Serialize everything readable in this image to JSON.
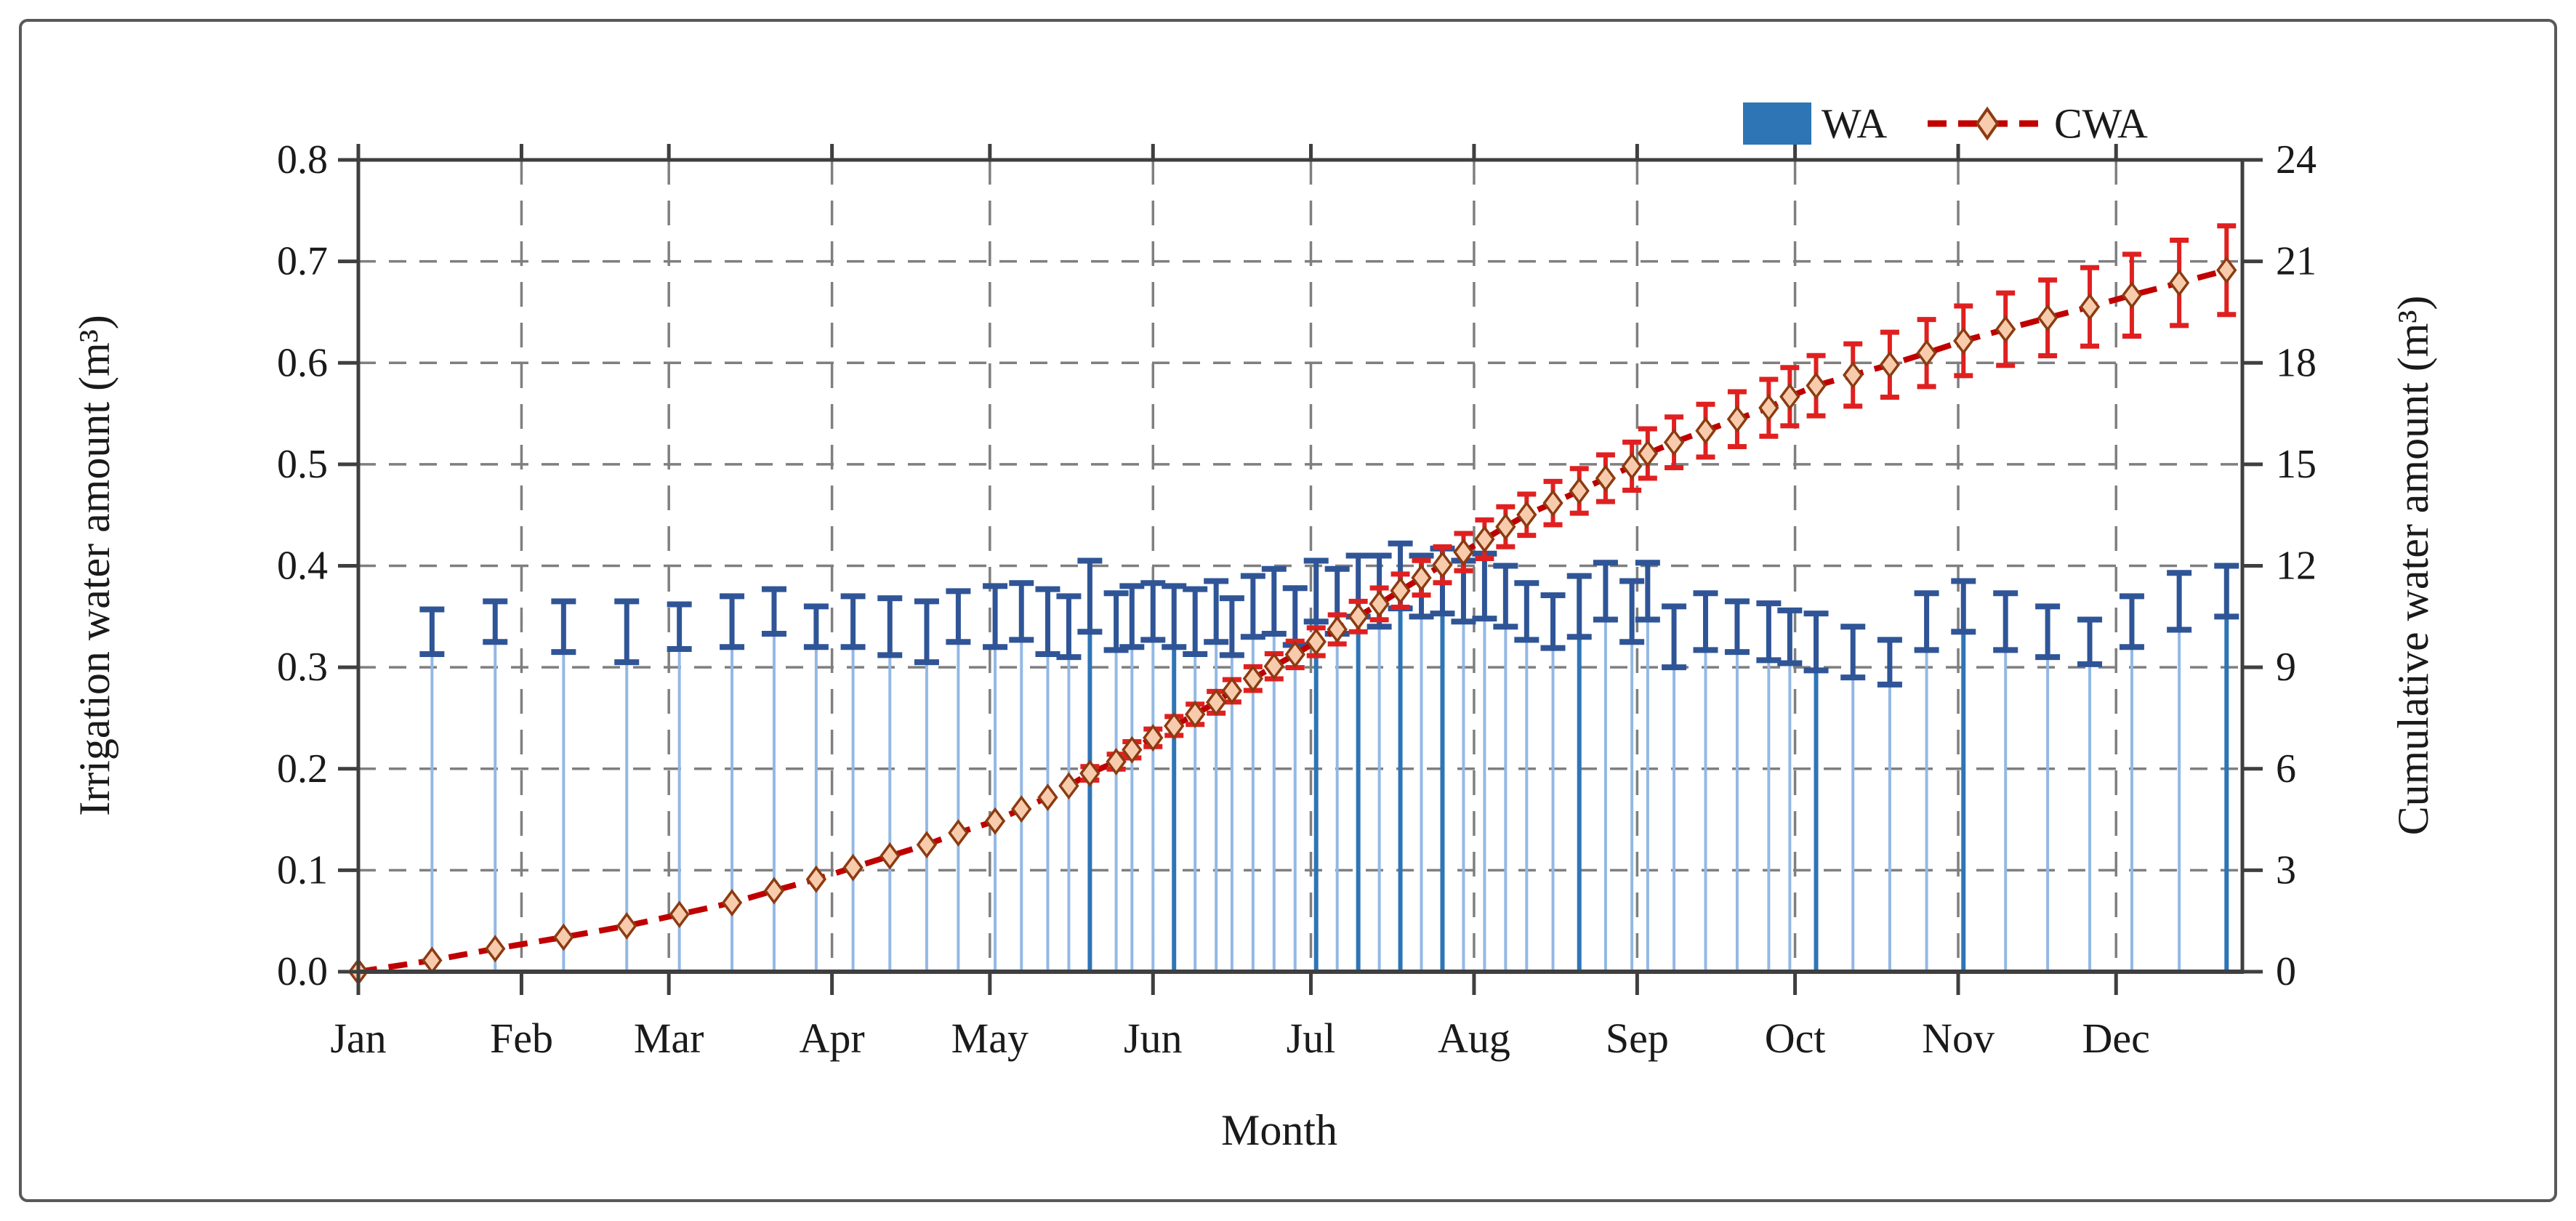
{
  "figure": {
    "background": "#ffffff",
    "border_color": "#595959"
  },
  "legend": {
    "wa_label": "WA",
    "cwa_label": "CWA",
    "wa_swatch_color": "#2E75B6",
    "cwa_line_color": "#C00000"
  },
  "chart_data": {
    "type": "bar",
    "title": "",
    "xlabel": "Month",
    "ylabel_left": "Irrigation water amount (m³)",
    "ylabel_right": "Cumulative water amount (m³)",
    "x_axis": {
      "month_labels": [
        "Jan",
        "Feb",
        "Mar",
        "Apr",
        "May",
        "Jun",
        "Jul",
        "Aug",
        "Sep",
        "Oct",
        "Nov",
        "Dec"
      ],
      "month_start_days": [
        0,
        31,
        59,
        90,
        120,
        151,
        181,
        212,
        243,
        273,
        304,
        334
      ],
      "domain_days": [
        0,
        358
      ]
    },
    "y_left": {
      "min": 0,
      "max": 0.8,
      "tick_labels": [
        "0.0",
        "0.1",
        "0.2",
        "0.3",
        "0.4",
        "0.5",
        "0.6",
        "0.7",
        "0.8"
      ],
      "tick_values": [
        0,
        0.1,
        0.2,
        0.3,
        0.4,
        0.5,
        0.6,
        0.7,
        0.8
      ],
      "grid_values": [
        0.1,
        0.2,
        0.3,
        0.4,
        0.5,
        0.6,
        0.7
      ]
    },
    "y_right": {
      "min": 0,
      "max": 24,
      "tick_labels": [
        "0",
        "3",
        "6",
        "9",
        "12",
        "15",
        "18",
        "21",
        "24"
      ],
      "tick_values": [
        0,
        3,
        6,
        9,
        12,
        15,
        18,
        21,
        24
      ]
    },
    "grid": {
      "v_month_days": [
        31,
        59,
        90,
        120,
        151,
        181,
        212,
        243,
        273,
        304,
        334
      ],
      "color": "#7f7f7f"
    },
    "series": [
      {
        "name": "WA",
        "type": "bar",
        "axis": "left",
        "bar_color": "#93B8E4",
        "bar_color_emphasis": "#2E75B6",
        "error_color": "#2F5597",
        "days": [
          14,
          26,
          39,
          51,
          61,
          71,
          79,
          87,
          94,
          101,
          108,
          114,
          121,
          126,
          131,
          135,
          139,
          144,
          147,
          151,
          155,
          159,
          163,
          166,
          170,
          174,
          178,
          182,
          186,
          190,
          194,
          198,
          202,
          206,
          210,
          214,
          218,
          222,
          227,
          232,
          237,
          242,
          245,
          250,
          256,
          262,
          268,
          272,
          277,
          284,
          291,
          298,
          305,
          313,
          321,
          329,
          337,
          346,
          355
        ],
        "values": [
          0.335,
          0.345,
          0.34,
          0.335,
          0.34,
          0.345,
          0.355,
          0.34,
          0.345,
          0.34,
          0.335,
          0.35,
          0.35,
          0.355,
          0.345,
          0.34,
          0.37,
          0.345,
          0.35,
          0.355,
          0.35,
          0.345,
          0.355,
          0.34,
          0.36,
          0.365,
          0.35,
          0.375,
          0.365,
          0.38,
          0.375,
          0.39,
          0.38,
          0.385,
          0.375,
          0.38,
          0.37,
          0.355,
          0.345,
          0.36,
          0.375,
          0.355,
          0.375,
          0.33,
          0.345,
          0.34,
          0.335,
          0.33,
          0.325,
          0.315,
          0.305,
          0.345,
          0.36,
          0.345,
          0.335,
          0.325,
          0.345,
          0.365,
          0.375
        ],
        "errors": [
          0.022,
          0.02,
          0.025,
          0.03,
          0.022,
          0.025,
          0.022,
          0.02,
          0.025,
          0.028,
          0.03,
          0.025,
          0.03,
          0.028,
          0.032,
          0.03,
          0.035,
          0.028,
          0.03,
          0.028,
          0.03,
          0.032,
          0.03,
          0.028,
          0.03,
          0.032,
          0.028,
          0.03,
          0.032,
          0.03,
          0.035,
          0.032,
          0.03,
          0.032,
          0.03,
          0.032,
          0.03,
          0.028,
          0.026,
          0.03,
          0.028,
          0.03,
          0.028,
          0.03,
          0.028,
          0.025,
          0.028,
          0.026,
          0.028,
          0.025,
          0.022,
          0.028,
          0.025,
          0.028,
          0.025,
          0.022,
          0.025,
          0.028,
          0.025
        ],
        "emphasis_indices": [
          16,
          20,
          27,
          29,
          31,
          33,
          39,
          48,
          52,
          58
        ]
      },
      {
        "name": "CWA",
        "type": "line",
        "axis": "right",
        "line_color": "#C00000",
        "marker_fill": "#F8CBAD",
        "marker_stroke": "#8C3B11",
        "error_color": "#E02020",
        "days": [
          0,
          14,
          26,
          39,
          51,
          61,
          71,
          79,
          87,
          94,
          101,
          108,
          114,
          121,
          126,
          131,
          135,
          139,
          144,
          147,
          151,
          155,
          159,
          163,
          166,
          170,
          174,
          178,
          182,
          186,
          190,
          194,
          198,
          202,
          206,
          210,
          214,
          218,
          222,
          227,
          232,
          237,
          242,
          245,
          250,
          256,
          262,
          268,
          272,
          277,
          284,
          291,
          298,
          305,
          313,
          321,
          329,
          337,
          346,
          355
        ],
        "values": [
          0,
          0.335,
          0.68,
          1.02,
          1.355,
          1.695,
          2.04,
          2.395,
          2.735,
          3.08,
          3.42,
          3.755,
          4.105,
          4.455,
          4.81,
          5.155,
          5.495,
          5.865,
          6.21,
          6.56,
          6.915,
          7.265,
          7.61,
          7.965,
          8.305,
          8.665,
          9.03,
          9.38,
          9.755,
          10.12,
          10.5,
          10.875,
          11.265,
          11.645,
          12.03,
          12.405,
          12.785,
          13.155,
          13.51,
          13.855,
          14.215,
          14.59,
          14.945,
          15.32,
          15.65,
          15.995,
          16.335,
          16.67,
          17.0,
          17.325,
          17.64,
          17.945,
          18.29,
          18.65,
          18.995,
          19.33,
          19.655,
          20.0,
          20.365,
          20.74
        ],
        "errors": [
          0,
          0,
          0,
          0,
          0,
          0,
          0,
          0,
          0,
          0,
          0,
          0,
          0,
          0,
          0,
          0,
          0,
          0.2,
          0.22,
          0.24,
          0.26,
          0.28,
          0.3,
          0.32,
          0.33,
          0.35,
          0.37,
          0.39,
          0.41,
          0.43,
          0.45,
          0.47,
          0.49,
          0.51,
          0.53,
          0.55,
          0.57,
          0.59,
          0.61,
          0.64,
          0.66,
          0.69,
          0.71,
          0.73,
          0.75,
          0.78,
          0.81,
          0.84,
          0.86,
          0.89,
          0.92,
          0.96,
          0.99,
          1.03,
          1.07,
          1.12,
          1.16,
          1.21,
          1.26,
          1.31
        ]
      }
    ]
  }
}
